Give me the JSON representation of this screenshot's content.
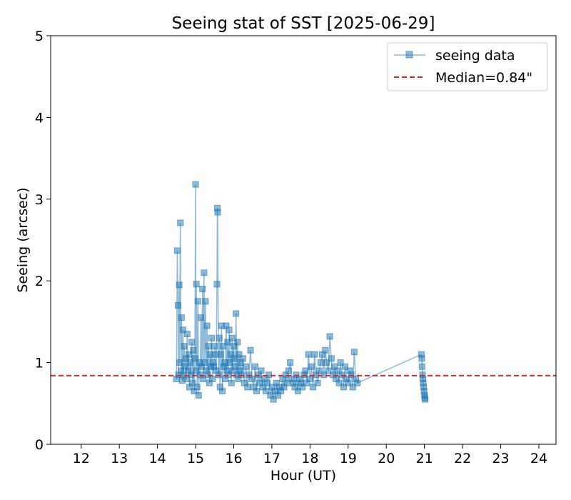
{
  "chart_data": {
    "type": "line",
    "title": "Seeing stat of SST [2025-06-29]",
    "xlabel": "Hour (UT)",
    "ylabel": "Seeing (arcsec)",
    "xlim": [
      11.2,
      24.45
    ],
    "ylim": [
      0,
      5
    ],
    "xticks": [
      12,
      13,
      14,
      15,
      16,
      17,
      18,
      19,
      20,
      21,
      22,
      23,
      24
    ],
    "yticks": [
      0,
      1,
      2,
      3,
      4,
      5
    ],
    "grid": false,
    "legend_position": "top-right",
    "series": [
      {
        "name": "seeing data",
        "marker": "square",
        "color": "#1f77b4",
        "x": [
          14.5,
          14.52,
          14.54,
          14.55,
          14.57,
          14.58,
          14.6,
          14.62,
          14.63,
          14.65,
          14.67,
          14.68,
          14.7,
          14.72,
          14.74,
          14.76,
          14.78,
          14.8,
          14.82,
          14.84,
          14.86,
          14.88,
          14.9,
          14.92,
          14.94,
          14.96,
          14.98,
          15.0,
          15.01,
          15.02,
          15.04,
          15.06,
          15.08,
          15.1,
          15.12,
          15.14,
          15.16,
          15.18,
          15.2,
          15.22,
          15.24,
          15.26,
          15.28,
          15.3,
          15.32,
          15.34,
          15.36,
          15.38,
          15.4,
          15.42,
          15.44,
          15.46,
          15.48,
          15.5,
          15.52,
          15.54,
          15.56,
          15.57,
          15.58,
          15.6,
          15.62,
          15.64,
          15.66,
          15.68,
          15.7,
          15.72,
          15.74,
          15.76,
          15.78,
          15.8,
          15.82,
          15.84,
          15.86,
          15.88,
          15.9,
          15.92,
          15.94,
          15.96,
          15.98,
          16.0,
          16.02,
          16.04,
          16.06,
          16.08,
          16.1,
          16.12,
          16.14,
          16.16,
          16.18,
          16.2,
          16.24,
          16.28,
          16.32,
          16.36,
          16.4,
          16.44,
          16.48,
          16.52,
          16.56,
          16.6,
          16.64,
          16.68,
          16.72,
          16.76,
          16.8,
          16.84,
          16.88,
          16.92,
          16.96,
          17.0,
          17.04,
          17.08,
          17.12,
          17.16,
          17.2,
          17.24,
          17.28,
          17.32,
          17.36,
          17.4,
          17.44,
          17.48,
          17.52,
          17.56,
          17.6,
          17.64,
          17.68,
          17.72,
          17.76,
          17.8,
          17.84,
          17.88,
          17.92,
          17.96,
          18.0,
          18.04,
          18.08,
          18.12,
          18.16,
          18.2,
          18.24,
          18.28,
          18.32,
          18.36,
          18.4,
          18.44,
          18.48,
          18.52,
          18.56,
          18.6,
          18.64,
          18.68,
          18.72,
          18.76,
          18.8,
          18.84,
          18.88,
          18.92,
          18.96,
          19.0,
          19.04,
          19.08,
          19.12,
          19.16,
          19.2,
          19.24,
          20.92,
          20.93,
          20.94,
          20.95,
          20.96,
          20.97,
          20.98,
          20.99,
          21.0,
          21.01,
          21.02
        ],
        "values": [
          0.8,
          2.37,
          1.7,
          0.85,
          1.95,
          1.0,
          2.71,
          0.9,
          1.55,
          0.78,
          1.4,
          0.85,
          1.2,
          0.95,
          1.05,
          0.8,
          1.35,
          0.9,
          1.1,
          0.7,
          1.0,
          0.85,
          1.25,
          0.75,
          1.15,
          0.65,
          1.05,
          3.18,
          0.9,
          1.96,
          0.7,
          1.75,
          0.6,
          1.0,
          0.85,
          1.55,
          0.95,
          1.9,
          0.8,
          2.1,
          1.0,
          1.75,
          0.9,
          1.45,
          0.85,
          1.2,
          0.75,
          1.1,
          0.95,
          1.3,
          0.8,
          1.0,
          0.95,
          1.2,
          1.1,
          0.9,
          1.96,
          2.89,
          2.84,
          0.85,
          1.3,
          0.7,
          1.1,
          1.45,
          0.65,
          1.2,
          0.95,
          1.0,
          0.8,
          1.45,
          0.9,
          1.25,
          0.85,
          1.4,
          1.0,
          1.1,
          0.75,
          1.3,
          0.9,
          1.2,
          1.05,
          0.95,
          1.6,
          0.85,
          1.25,
          0.8,
          1.1,
          0.9,
          1.0,
          0.85,
          1.05,
          0.75,
          0.95,
          0.7,
          0.85,
          1.15,
          0.8,
          0.7,
          0.95,
          0.65,
          0.85,
          0.75,
          0.9,
          0.7,
          0.8,
          0.65,
          0.75,
          0.85,
          0.6,
          0.7,
          0.55,
          0.65,
          0.75,
          0.6,
          0.7,
          0.65,
          0.8,
          0.7,
          0.85,
          0.75,
          0.9,
          1.0,
          0.8,
          0.75,
          0.7,
          0.85,
          0.65,
          0.8,
          0.75,
          0.7,
          0.85,
          0.9,
          0.75,
          1.1,
          0.8,
          0.95,
          0.7,
          1.1,
          0.85,
          0.75,
          0.9,
          1.0,
          1.1,
          0.85,
          1.15,
          1.0,
          0.9,
          1.32,
          1.05,
          0.85,
          0.95,
          0.8,
          0.9,
          0.75,
          1.0,
          0.85,
          0.7,
          0.95,
          0.8,
          0.75,
          0.9,
          0.85,
          0.7,
          1.13,
          0.8,
          0.75,
          1.1,
          1.05,
          0.95,
          0.85,
          0.8,
          0.75,
          0.7,
          0.65,
          0.6,
          0.57,
          0.55
        ]
      },
      {
        "name": "Median=0.84\"",
        "type": "hline",
        "value": 0.84,
        "color": "#d62728",
        "linestyle": "dashed"
      }
    ]
  }
}
